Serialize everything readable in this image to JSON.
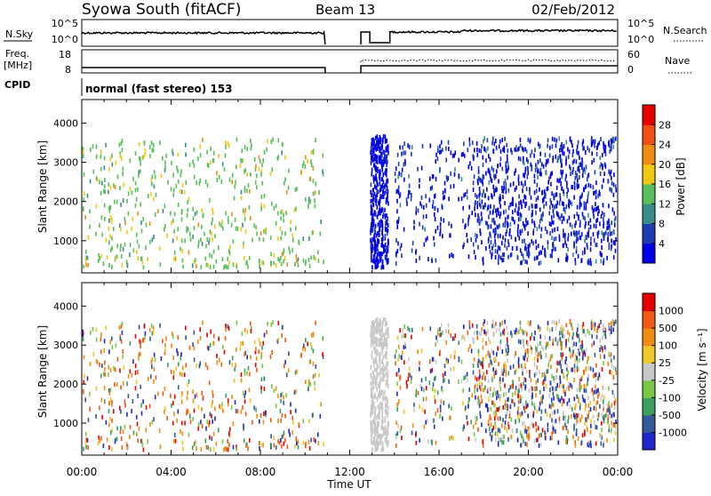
{
  "header": {
    "station": "Syowa South (fitACF)",
    "beam": "Beam 13",
    "date": "02/Feb/2012"
  },
  "labels": {
    "nsky": "N.Sky",
    "nsearch": "N.Search",
    "freq": "Freq.",
    "mhz": "[MHz]",
    "nave": "Nave",
    "cpid": "CPID",
    "cpid_value": "normal (fast stereo) 153",
    "time_axis": "Time UT",
    "slant_range": "Slant Range [km]"
  },
  "noise_panel": {
    "left_ticks": [
      "10^5",
      "10^0"
    ],
    "right_ticks": [
      "10^5",
      "10^0"
    ]
  },
  "freq_panel": {
    "left_ticks": [
      "18",
      "8"
    ],
    "right_ticks": [
      "60",
      "0"
    ]
  },
  "chart_data": [
    {
      "type": "heatmap",
      "name": "power",
      "x_ticks": [
        "00:00",
        "04:00",
        "08:00",
        "12:00",
        "16:00",
        "20:00",
        "00:00"
      ],
      "xlim_hours": [
        0,
        24
      ],
      "ylim_km": [
        180,
        4600
      ],
      "y_ticks": [
        1000,
        2000,
        3000,
        4000
      ],
      "colorbar_label": "Power [dB]",
      "colorbar_ticks": [
        "28",
        "24",
        "20",
        "16",
        "12",
        "8",
        "4"
      ],
      "colors": [
        "#0000e6",
        "#1e3cb4",
        "#3c8c8c",
        "#5abe5a",
        "#f0c814",
        "#f08c14",
        "#f05014",
        "#e60000"
      ],
      "range_dB": [
        0,
        32
      ]
    },
    {
      "type": "heatmap",
      "name": "velocity",
      "x_ticks": [
        "00:00",
        "04:00",
        "08:00",
        "12:00",
        "16:00",
        "20:00",
        "00:00"
      ],
      "xlim_hours": [
        0,
        24
      ],
      "ylim_km": [
        180,
        4600
      ],
      "y_ticks": [
        1000,
        2000,
        3000,
        4000
      ],
      "colorbar_label": "Velocity [m s⁻¹]",
      "colorbar_ticks": [
        "1000",
        "500",
        "100",
        "25",
        "-25",
        "-100",
        "-500",
        "-1000"
      ],
      "colors": [
        "#1e28c8",
        "#325a96",
        "#3ca05a",
        "#78c846",
        "#c8c8c8",
        "#f0c828",
        "#f08c14",
        "#f05a14",
        "#e60000"
      ]
    }
  ]
}
